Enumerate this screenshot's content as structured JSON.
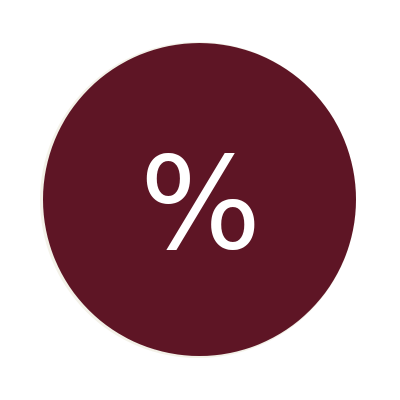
{
  "badge": {
    "symbol": "%",
    "background_color": "#5e1525",
    "symbol_color": "#ffffff",
    "icon": "percent-icon"
  }
}
